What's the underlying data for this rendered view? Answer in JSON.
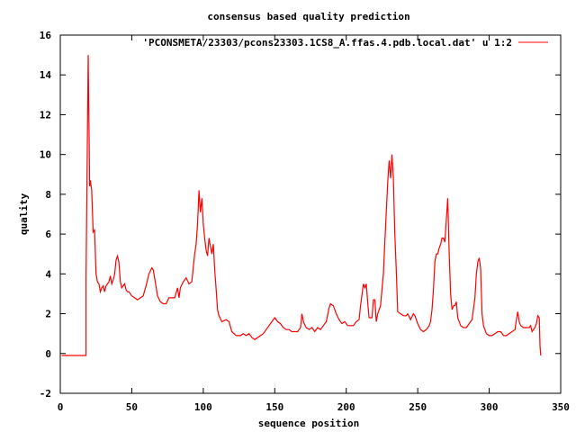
{
  "chart_data": {
    "type": "line",
    "title": "consensus based quality prediction",
    "xlabel": "sequence position",
    "ylabel": "quality",
    "xlim": [
      0,
      350
    ],
    "ylim": [
      -2,
      16
    ],
    "xticks": [
      0,
      50,
      100,
      150,
      200,
      250,
      300,
      350
    ],
    "yticks": [
      -2,
      0,
      2,
      4,
      6,
      8,
      10,
      12,
      14,
      16
    ],
    "grid": false,
    "legend_position": "top-right",
    "series": [
      {
        "name": "'PCONSMETA/23303/pcons23303.1CS8_A.ffas.4.pdb.local.dat' u 1:2",
        "color": "#ff0000",
        "points": [
          [
            1,
            -0.1
          ],
          [
            18,
            -0.1
          ],
          [
            18,
            3.8
          ],
          [
            19,
            11.2
          ],
          [
            19.5,
            15.0
          ],
          [
            20,
            11.7
          ],
          [
            20.5,
            8.4
          ],
          [
            21,
            8.7
          ],
          [
            22,
            8.2
          ],
          [
            23,
            6.1
          ],
          [
            24,
            6.2
          ],
          [
            25,
            4.0
          ],
          [
            26,
            3.6
          ],
          [
            27,
            3.5
          ],
          [
            28,
            3.1
          ],
          [
            29,
            3.3
          ],
          [
            30,
            3.4
          ],
          [
            31,
            3.1
          ],
          [
            32,
            3.4
          ],
          [
            33,
            3.5
          ],
          [
            34,
            3.6
          ],
          [
            35,
            3.9
          ],
          [
            36,
            3.5
          ],
          [
            37,
            3.7
          ],
          [
            38,
            4.0
          ],
          [
            39,
            4.7
          ],
          [
            40,
            4.9
          ],
          [
            41,
            4.6
          ],
          [
            42,
            3.6
          ],
          [
            43,
            3.3
          ],
          [
            44,
            3.4
          ],
          [
            45,
            3.5
          ],
          [
            46,
            3.2
          ],
          [
            47,
            3.1
          ],
          [
            48,
            3.1
          ],
          [
            50,
            2.9
          ],
          [
            52,
            2.8
          ],
          [
            54,
            2.7
          ],
          [
            56,
            2.8
          ],
          [
            58,
            2.9
          ],
          [
            60,
            3.4
          ],
          [
            62,
            4.0
          ],
          [
            64,
            4.3
          ],
          [
            65,
            4.2
          ],
          [
            66,
            3.8
          ],
          [
            68,
            2.9
          ],
          [
            70,
            2.6
          ],
          [
            72,
            2.5
          ],
          [
            74,
            2.5
          ],
          [
            76,
            2.8
          ],
          [
            78,
            2.8
          ],
          [
            80,
            2.8
          ],
          [
            82,
            3.3
          ],
          [
            83,
            2.8
          ],
          [
            84,
            3.3
          ],
          [
            86,
            3.6
          ],
          [
            88,
            3.8
          ],
          [
            90,
            3.5
          ],
          [
            92,
            3.6
          ],
          [
            94,
            5.0
          ],
          [
            95,
            5.5
          ],
          [
            96,
            6.5
          ],
          [
            97,
            8.2
          ],
          [
            98,
            7.1
          ],
          [
            99,
            7.8
          ],
          [
            100,
            6.5
          ],
          [
            101,
            5.8
          ],
          [
            102,
            5.2
          ],
          [
            103,
            4.9
          ],
          [
            104,
            5.8
          ],
          [
            105,
            5.4
          ],
          [
            106,
            5.0
          ],
          [
            107,
            5.5
          ],
          [
            108,
            4.2
          ],
          [
            109,
            3.2
          ],
          [
            110,
            2.2
          ],
          [
            111,
            1.9
          ],
          [
            113,
            1.6
          ],
          [
            116,
            1.7
          ],
          [
            118,
            1.6
          ],
          [
            120,
            1.1
          ],
          [
            123,
            0.9
          ],
          [
            126,
            0.9
          ],
          [
            128,
            1.0
          ],
          [
            130,
            0.9
          ],
          [
            132,
            1.0
          ],
          [
            134,
            0.8
          ],
          [
            136,
            0.7
          ],
          [
            138,
            0.8
          ],
          [
            140,
            0.9
          ],
          [
            142,
            1.0
          ],
          [
            144,
            1.2
          ],
          [
            146,
            1.4
          ],
          [
            148,
            1.6
          ],
          [
            150,
            1.8
          ],
          [
            152,
            1.6
          ],
          [
            154,
            1.5
          ],
          [
            156,
            1.3
          ],
          [
            158,
            1.2
          ],
          [
            160,
            1.2
          ],
          [
            162,
            1.1
          ],
          [
            164,
            1.1
          ],
          [
            166,
            1.1
          ],
          [
            168,
            1.3
          ],
          [
            169,
            2.0
          ],
          [
            170,
            1.6
          ],
          [
            172,
            1.3
          ],
          [
            174,
            1.2
          ],
          [
            176,
            1.3
          ],
          [
            178,
            1.1
          ],
          [
            180,
            1.3
          ],
          [
            182,
            1.2
          ],
          [
            184,
            1.4
          ],
          [
            186,
            1.6
          ],
          [
            188,
            2.3
          ],
          [
            189,
            2.5
          ],
          [
            191,
            2.4
          ],
          [
            193,
            2.0
          ],
          [
            195,
            1.7
          ],
          [
            197,
            1.5
          ],
          [
            199,
            1.6
          ],
          [
            201,
            1.4
          ],
          [
            203,
            1.4
          ],
          [
            205,
            1.4
          ],
          [
            207,
            1.6
          ],
          [
            209,
            1.7
          ],
          [
            210,
            2.4
          ],
          [
            212,
            3.5
          ],
          [
            213,
            3.3
          ],
          [
            214,
            3.5
          ],
          [
            215,
            2.6
          ],
          [
            216,
            1.8
          ],
          [
            218,
            1.8
          ],
          [
            219,
            2.7
          ],
          [
            220,
            2.7
          ],
          [
            221,
            1.6
          ],
          [
            222,
            2.0
          ],
          [
            224,
            2.4
          ],
          [
            226,
            4.0
          ],
          [
            227,
            5.6
          ],
          [
            228,
            7.1
          ],
          [
            229,
            8.6
          ],
          [
            230,
            9.7
          ],
          [
            231,
            8.8
          ],
          [
            232,
            10.0
          ],
          [
            233,
            8.8
          ],
          [
            234,
            6.0
          ],
          [
            235,
            4.2
          ],
          [
            236,
            2.1
          ],
          [
            238,
            2.0
          ],
          [
            240,
            1.9
          ],
          [
            242,
            1.9
          ],
          [
            243,
            2.0
          ],
          [
            245,
            1.7
          ],
          [
            247,
            2.0
          ],
          [
            248,
            1.9
          ],
          [
            250,
            1.5
          ],
          [
            252,
            1.2
          ],
          [
            254,
            1.1
          ],
          [
            256,
            1.2
          ],
          [
            258,
            1.4
          ],
          [
            259,
            1.6
          ],
          [
            260,
            2.2
          ],
          [
            261,
            3.2
          ],
          [
            262,
            4.6
          ],
          [
            263,
            5.0
          ],
          [
            264,
            5.0
          ],
          [
            265,
            5.3
          ],
          [
            266,
            5.5
          ],
          [
            267,
            5.8
          ],
          [
            268,
            5.8
          ],
          [
            269,
            5.6
          ],
          [
            270,
            6.7
          ],
          [
            271,
            7.8
          ],
          [
            272,
            5.0
          ],
          [
            273,
            3.0
          ],
          [
            274,
            2.2
          ],
          [
            275,
            2.4
          ],
          [
            276,
            2.4
          ],
          [
            277,
            2.6
          ],
          [
            278,
            1.8
          ],
          [
            280,
            1.4
          ],
          [
            282,
            1.3
          ],
          [
            284,
            1.3
          ],
          [
            286,
            1.5
          ],
          [
            288,
            1.7
          ],
          [
            290,
            2.8
          ],
          [
            291,
            4.0
          ],
          [
            292,
            4.6
          ],
          [
            293,
            4.8
          ],
          [
            294,
            4.3
          ],
          [
            295,
            2.0
          ],
          [
            296,
            1.4
          ],
          [
            298,
            1.0
          ],
          [
            300,
            0.9
          ],
          [
            302,
            0.9
          ],
          [
            304,
            1.0
          ],
          [
            306,
            1.1
          ],
          [
            308,
            1.1
          ],
          [
            310,
            0.9
          ],
          [
            312,
            0.9
          ],
          [
            314,
            1.0
          ],
          [
            316,
            1.1
          ],
          [
            318,
            1.2
          ],
          [
            319,
            1.7
          ],
          [
            320,
            2.1
          ],
          [
            321,
            1.6
          ],
          [
            322,
            1.4
          ],
          [
            324,
            1.3
          ],
          [
            326,
            1.3
          ],
          [
            328,
            1.3
          ],
          [
            329,
            1.4
          ],
          [
            330,
            1.1
          ],
          [
            332,
            1.3
          ],
          [
            333,
            1.5
          ],
          [
            334,
            1.9
          ],
          [
            335,
            1.8
          ],
          [
            335.5,
            0.4
          ],
          [
            336,
            -0.1
          ]
        ]
      }
    ]
  }
}
